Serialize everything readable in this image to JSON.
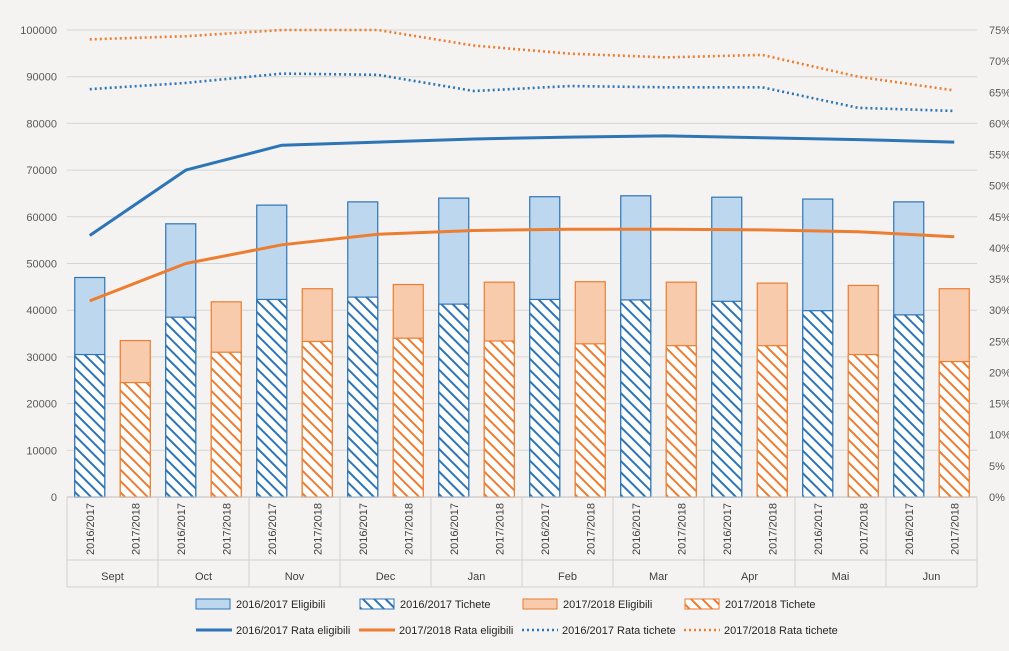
{
  "chart_data": {
    "type": "bar",
    "title": "",
    "xlabel": "",
    "ylabel": "",
    "ylim": [
      0,
      100000
    ],
    "y2lim": [
      0,
      0.75
    ],
    "y_ticks": [
      "0",
      "10000",
      "20000",
      "30000",
      "40000",
      "50000",
      "60000",
      "70000",
      "80000",
      "90000",
      "100000"
    ],
    "y2_ticks": [
      "0%",
      "5%",
      "10%",
      "15%",
      "20%",
      "25%",
      "30%",
      "35%",
      "40%",
      "45%",
      "50%",
      "55%",
      "60%",
      "65%",
      "70%",
      "75%"
    ],
    "months": [
      "Sept",
      "Oct",
      "Nov",
      "Dec",
      "Jan",
      "Feb",
      "Mar",
      "Apr",
      "Mai",
      "Jun"
    ],
    "years": [
      "2016/2017",
      "2017/2018"
    ],
    "grid": true,
    "legend_position": "bottom",
    "colors": {
      "blue": "#2e75b6",
      "blue_fill": "#bdd7ee",
      "orange": "#ed7d31",
      "orange_fill": "#f8cbad"
    },
    "series": [
      {
        "name": "2016/2017 Eligibili",
        "kind": "bar",
        "year_index": 0,
        "values": [
          47000,
          58500,
          62500,
          63200,
          64000,
          64300,
          64500,
          64200,
          63800,
          63200
        ]
      },
      {
        "name": "2016/2017 Tichete",
        "kind": "bar-hatched",
        "year_index": 0,
        "values": [
          30500,
          38500,
          42300,
          42800,
          41300,
          42300,
          42200,
          41900,
          39900,
          39000
        ]
      },
      {
        "name": "2017/2018 Eligibili",
        "kind": "bar",
        "year_index": 1,
        "values": [
          33500,
          41800,
          44600,
          45500,
          46000,
          46100,
          46000,
          45800,
          45300,
          44600
        ]
      },
      {
        "name": "2017/2018 Tichete",
        "kind": "bar-hatched",
        "year_index": 1,
        "values": [
          24500,
          31000,
          33300,
          34000,
          33400,
          32800,
          32400,
          32400,
          30500,
          29000
        ]
      },
      {
        "name": "2016/2017 Rata eligibili",
        "kind": "line",
        "values": [
          0.42,
          0.525,
          0.565,
          0.57,
          0.575,
          0.578,
          0.58,
          0.577,
          0.574,
          0.57
        ]
      },
      {
        "name": "2017/2018 Rata eligibili",
        "kind": "line",
        "values": [
          0.315,
          0.375,
          0.405,
          0.422,
          0.428,
          0.43,
          0.43,
          0.429,
          0.426,
          0.418
        ]
      },
      {
        "name": "2016/2017 Rata tichete",
        "kind": "line-dotted",
        "values": [
          0.655,
          0.665,
          0.68,
          0.678,
          0.652,
          0.66,
          0.658,
          0.658,
          0.625,
          0.62
        ]
      },
      {
        "name": "2017/2018 Rata tichete",
        "kind": "line-dotted",
        "values": [
          0.735,
          0.74,
          0.75,
          0.75,
          0.725,
          0.712,
          0.706,
          0.71,
          0.675,
          0.653
        ]
      }
    ]
  }
}
